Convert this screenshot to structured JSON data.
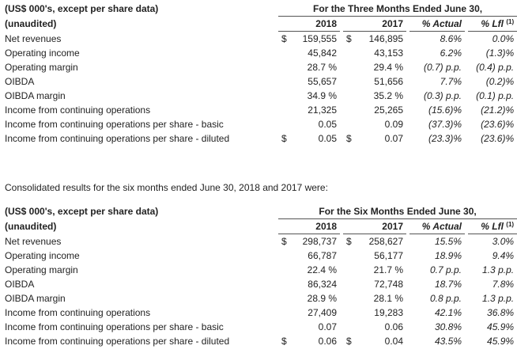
{
  "table1": {
    "units_label": "(US$ 000's, except per share data)",
    "unaudited_label": "(unaudited)",
    "period_header": "For the Three Months Ended June 30,",
    "col_2018": "2018",
    "col_2017": "2017",
    "col_actual": "% Actual",
    "col_lfl": "% Lfl",
    "col_lfl_note": "(1)",
    "rows": [
      {
        "label": "Net revenues",
        "cur18": "$",
        "v2018": "159,555",
        "cur17": "$",
        "v2017": "146,895",
        "actual": "8.6%",
        "lfl": "0.0%"
      },
      {
        "label": "Operating income",
        "cur18": "",
        "v2018": "45,842",
        "cur17": "",
        "v2017": "43,153",
        "actual": "6.2%",
        "lfl": "(1.3)%"
      },
      {
        "label": "Operating margin",
        "cur18": "",
        "v2018": "28.7 %",
        "cur17": "",
        "v2017": "29.4 %",
        "actual": "(0.7) p.p.",
        "lfl": "(0.4) p.p."
      },
      {
        "label": "OIBDA",
        "cur18": "",
        "v2018": "55,657",
        "cur17": "",
        "v2017": "51,656",
        "actual": "7.7%",
        "lfl": "(0.2)%"
      },
      {
        "label": "OIBDA margin",
        "cur18": "",
        "v2018": "34.9 %",
        "cur17": "",
        "v2017": "35.2 %",
        "actual": "(0.3) p.p.",
        "lfl": "(0.1) p.p."
      },
      {
        "label": "Income from continuing operations",
        "cur18": "",
        "v2018": "21,325",
        "cur17": "",
        "v2017": "25,265",
        "actual": "(15.6)%",
        "lfl": "(21.2)%"
      },
      {
        "label": "Income from continuing operations per share - basic",
        "cur18": "",
        "v2018": "0.05",
        "cur17": "",
        "v2017": "0.09",
        "actual": "(37.3)%",
        "lfl": "(23.6)%"
      },
      {
        "label": "Income from continuing operations per share - diluted",
        "cur18": "$",
        "v2018": "0.05",
        "cur17": "$",
        "v2017": "0.07",
        "actual": "(23.3)%",
        "lfl": "(23.6)%"
      }
    ]
  },
  "intro_text": "Consolidated results for the six months ended June 30, 2018 and 2017 were:",
  "table2": {
    "units_label": "(US$ 000's, except per share data)",
    "unaudited_label": "(unaudited)",
    "period_header": "For the Six Months Ended June 30,",
    "col_2018": "2018",
    "col_2017": "2017",
    "col_actual": "% Actual",
    "col_lfl": "% Lfl",
    "col_lfl_note": "(1)",
    "rows": [
      {
        "label": "Net revenues",
        "cur18": "$",
        "v2018": "298,737",
        "cur17": "$",
        "v2017": "258,627",
        "actual": "15.5%",
        "lfl": "3.0%"
      },
      {
        "label": "Operating income",
        "cur18": "",
        "v2018": "66,787",
        "cur17": "",
        "v2017": "56,177",
        "actual": "18.9%",
        "lfl": "9.4%"
      },
      {
        "label": "Operating margin",
        "cur18": "",
        "v2018": "22.4 %",
        "cur17": "",
        "v2017": "21.7 %",
        "actual": "0.7 p.p.",
        "lfl": "1.3 p.p."
      },
      {
        "label": "OIBDA",
        "cur18": "",
        "v2018": "86,324",
        "cur17": "",
        "v2017": "72,748",
        "actual": "18.7%",
        "lfl": "7.8%"
      },
      {
        "label": "OIBDA margin",
        "cur18": "",
        "v2018": "28.9 %",
        "cur17": "",
        "v2017": "28.1 %",
        "actual": "0.8 p.p.",
        "lfl": "1.3 p.p."
      },
      {
        "label": "Income from continuing operations",
        "cur18": "",
        "v2018": "27,409",
        "cur17": "",
        "v2017": "19,283",
        "actual": "42.1%",
        "lfl": "36.8%"
      },
      {
        "label": "Income from continuing operations per share - basic",
        "cur18": "",
        "v2018": "0.07",
        "cur17": "",
        "v2017": "0.06",
        "actual": "30.8%",
        "lfl": "45.9%"
      },
      {
        "label": "Income from continuing operations per share - diluted",
        "cur18": "$",
        "v2018": "0.06",
        "cur17": "$",
        "v2017": "0.04",
        "actual": "43.5%",
        "lfl": "45.9%"
      }
    ]
  }
}
